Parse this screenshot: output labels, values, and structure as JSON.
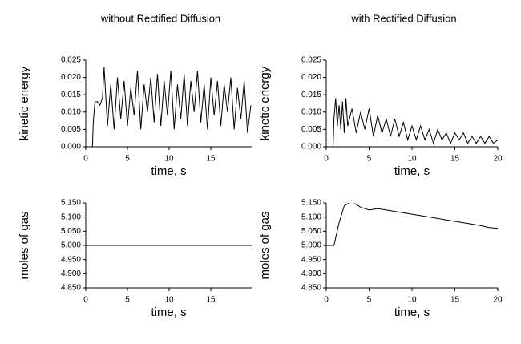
{
  "chart_data": [
    {
      "type": "line",
      "title": "without Rectified Diffusion",
      "x_label": "time, s",
      "y_label": "kinetic energy",
      "xlim": [
        0,
        19.9
      ],
      "xticks": [
        0,
        5,
        10,
        15
      ],
      "ylim": [
        0,
        0.025
      ],
      "yticks": [
        {
          "value": 0,
          "label": "0.000"
        },
        {
          "value": 0.005,
          "label": "0.005"
        },
        {
          "value": 0.01,
          "label": "0.010"
        },
        {
          "value": 0.015,
          "label": "0.015"
        },
        {
          "value": 0.02,
          "label": "0.020"
        },
        {
          "value": 0.025,
          "label": "0.025"
        }
      ],
      "x": [
        0,
        0.8,
        0.9,
        1.1,
        1.4,
        1.7,
        2.0,
        2.2,
        2.6,
        3.0,
        3.4,
        3.8,
        4.2,
        4.6,
        5.0,
        5.4,
        5.8,
        6.2,
        6.6,
        7.0,
        7.4,
        7.8,
        8.2,
        8.6,
        9.0,
        9.4,
        9.8,
        10.2,
        10.6,
        11.0,
        11.4,
        11.8,
        12.2,
        12.6,
        13.0,
        13.4,
        13.8,
        14.2,
        14.6,
        15.0,
        15.4,
        15.8,
        16.2,
        16.6,
        17.0,
        17.4,
        17.8,
        18.2,
        18.6,
        19.0,
        19.4,
        19.8
      ],
      "series": [
        {
          "color": "#000000",
          "values": [
            0,
            0,
            0.007,
            0.013,
            0.013,
            0.012,
            0.014,
            0.023,
            0.006,
            0.018,
            0.005,
            0.02,
            0.008,
            0.019,
            0.006,
            0.017,
            0.009,
            0.022,
            0.005,
            0.018,
            0.01,
            0.02,
            0.007,
            0.021,
            0.006,
            0.019,
            0.009,
            0.022,
            0.005,
            0.018,
            0.008,
            0.021,
            0.006,
            0.019,
            0.01,
            0.022,
            0.007,
            0.018,
            0.005,
            0.02,
            0.009,
            0.019,
            0.006,
            0.018,
            0.01,
            0.02,
            0.005,
            0.017,
            0.008,
            0.019,
            0.004,
            0.012
          ]
        }
      ]
    },
    {
      "type": "line",
      "title": "with Rectified Diffusion",
      "x_label": "time, s",
      "y_label": "kinetic energy",
      "xlim": [
        0,
        20
      ],
      "xticks": [
        0,
        5,
        10,
        15,
        20
      ],
      "ylim": [
        0,
        0.025
      ],
      "yticks": [
        {
          "value": 0,
          "label": "0.000"
        },
        {
          "value": 0.005,
          "label": "0.005"
        },
        {
          "value": 0.01,
          "label": "0.010"
        },
        {
          "value": 0.015,
          "label": "0.015"
        },
        {
          "value": 0.02,
          "label": "0.020"
        },
        {
          "value": 0.025,
          "label": "0.025"
        }
      ],
      "x": [
        0,
        0.8,
        0.9,
        1.1,
        1.3,
        1.5,
        1.7,
        1.9,
        2.1,
        2.3,
        2.5,
        3.0,
        3.5,
        4.0,
        4.5,
        5.0,
        5.5,
        6.0,
        6.5,
        7.0,
        7.5,
        8.0,
        8.5,
        9.0,
        9.5,
        10.0,
        10.5,
        11.0,
        11.5,
        12.0,
        12.5,
        13.0,
        13.5,
        14.0,
        14.5,
        15.0,
        15.5,
        16.0,
        16.5,
        17.0,
        17.5,
        18.0,
        18.5,
        19.0,
        19.5,
        20.0
      ],
      "series": [
        {
          "color": "#000000",
          "values": [
            0,
            0,
            0.008,
            0.014,
            0.006,
            0.012,
            0.005,
            0.013,
            0.004,
            0.014,
            0.006,
            0.011,
            0.004,
            0.01,
            0.005,
            0.011,
            0.003,
            0.009,
            0.004,
            0.008,
            0.003,
            0.008,
            0.003,
            0.007,
            0.002,
            0.006,
            0.002,
            0.006,
            0.002,
            0.005,
            0.001,
            0.005,
            0.002,
            0.004,
            0.001,
            0.004,
            0.002,
            0.004,
            0.001,
            0.003,
            0.001,
            0.003,
            0.001,
            0.003,
            0.001,
            0.002
          ]
        }
      ]
    },
    {
      "type": "line",
      "x_label": "time, s",
      "y_label": "moles of gas",
      "xlim": [
        0,
        19.9
      ],
      "xticks": [
        0,
        5,
        10,
        15
      ],
      "ylim": [
        4.85,
        5.15
      ],
      "yticks": [
        {
          "value": 4.85,
          "label": "4.850"
        },
        {
          "value": 4.9,
          "label": "4.900"
        },
        {
          "value": 4.95,
          "label": "4.950"
        },
        {
          "value": 5,
          "label": "5.000"
        },
        {
          "value": 5.05,
          "label": "5.050"
        },
        {
          "value": 5.1,
          "label": "5.100"
        },
        {
          "value": 5.15,
          "label": "5.150"
        }
      ],
      "x": [
        0,
        19.9
      ],
      "series": [
        {
          "color": "#000000",
          "values": [
            5.0,
            5.0
          ]
        }
      ]
    },
    {
      "type": "line",
      "x_label": "time, s",
      "y_label": "moles of gas",
      "xlim": [
        0,
        20
      ],
      "xticks": [
        0,
        5,
        10,
        15,
        20
      ],
      "ylim": [
        4.85,
        5.15
      ],
      "yticks": [
        {
          "value": 4.85,
          "label": "4.850"
        },
        {
          "value": 4.9,
          "label": "4.900"
        },
        {
          "value": 4.95,
          "label": "4.950"
        },
        {
          "value": 5,
          "label": "5.000"
        },
        {
          "value": 5.05,
          "label": "5.050"
        },
        {
          "value": 5.1,
          "label": "5.100"
        },
        {
          "value": 5.15,
          "label": "5.150"
        }
      ],
      "x": [
        0,
        0.9,
        1.2,
        1.5,
        1.8,
        2.1,
        2.4,
        2.7,
        3.0,
        3.3,
        4,
        5,
        6,
        7,
        8,
        9,
        10,
        11,
        12,
        13,
        14,
        15,
        16,
        17,
        18,
        19,
        20
      ],
      "series": [
        {
          "color": "#000000",
          "values": [
            5.0,
            5.0,
            5.04,
            5.08,
            5.11,
            5.14,
            5.145,
            5.15,
            null,
            5.148,
            5.135,
            5.125,
            5.13,
            5.125,
            5.12,
            5.115,
            5.11,
            5.105,
            5.1,
            5.095,
            5.09,
            5.085,
            5.08,
            5.075,
            5.07,
            5.063,
            5.06
          ]
        }
      ]
    }
  ]
}
